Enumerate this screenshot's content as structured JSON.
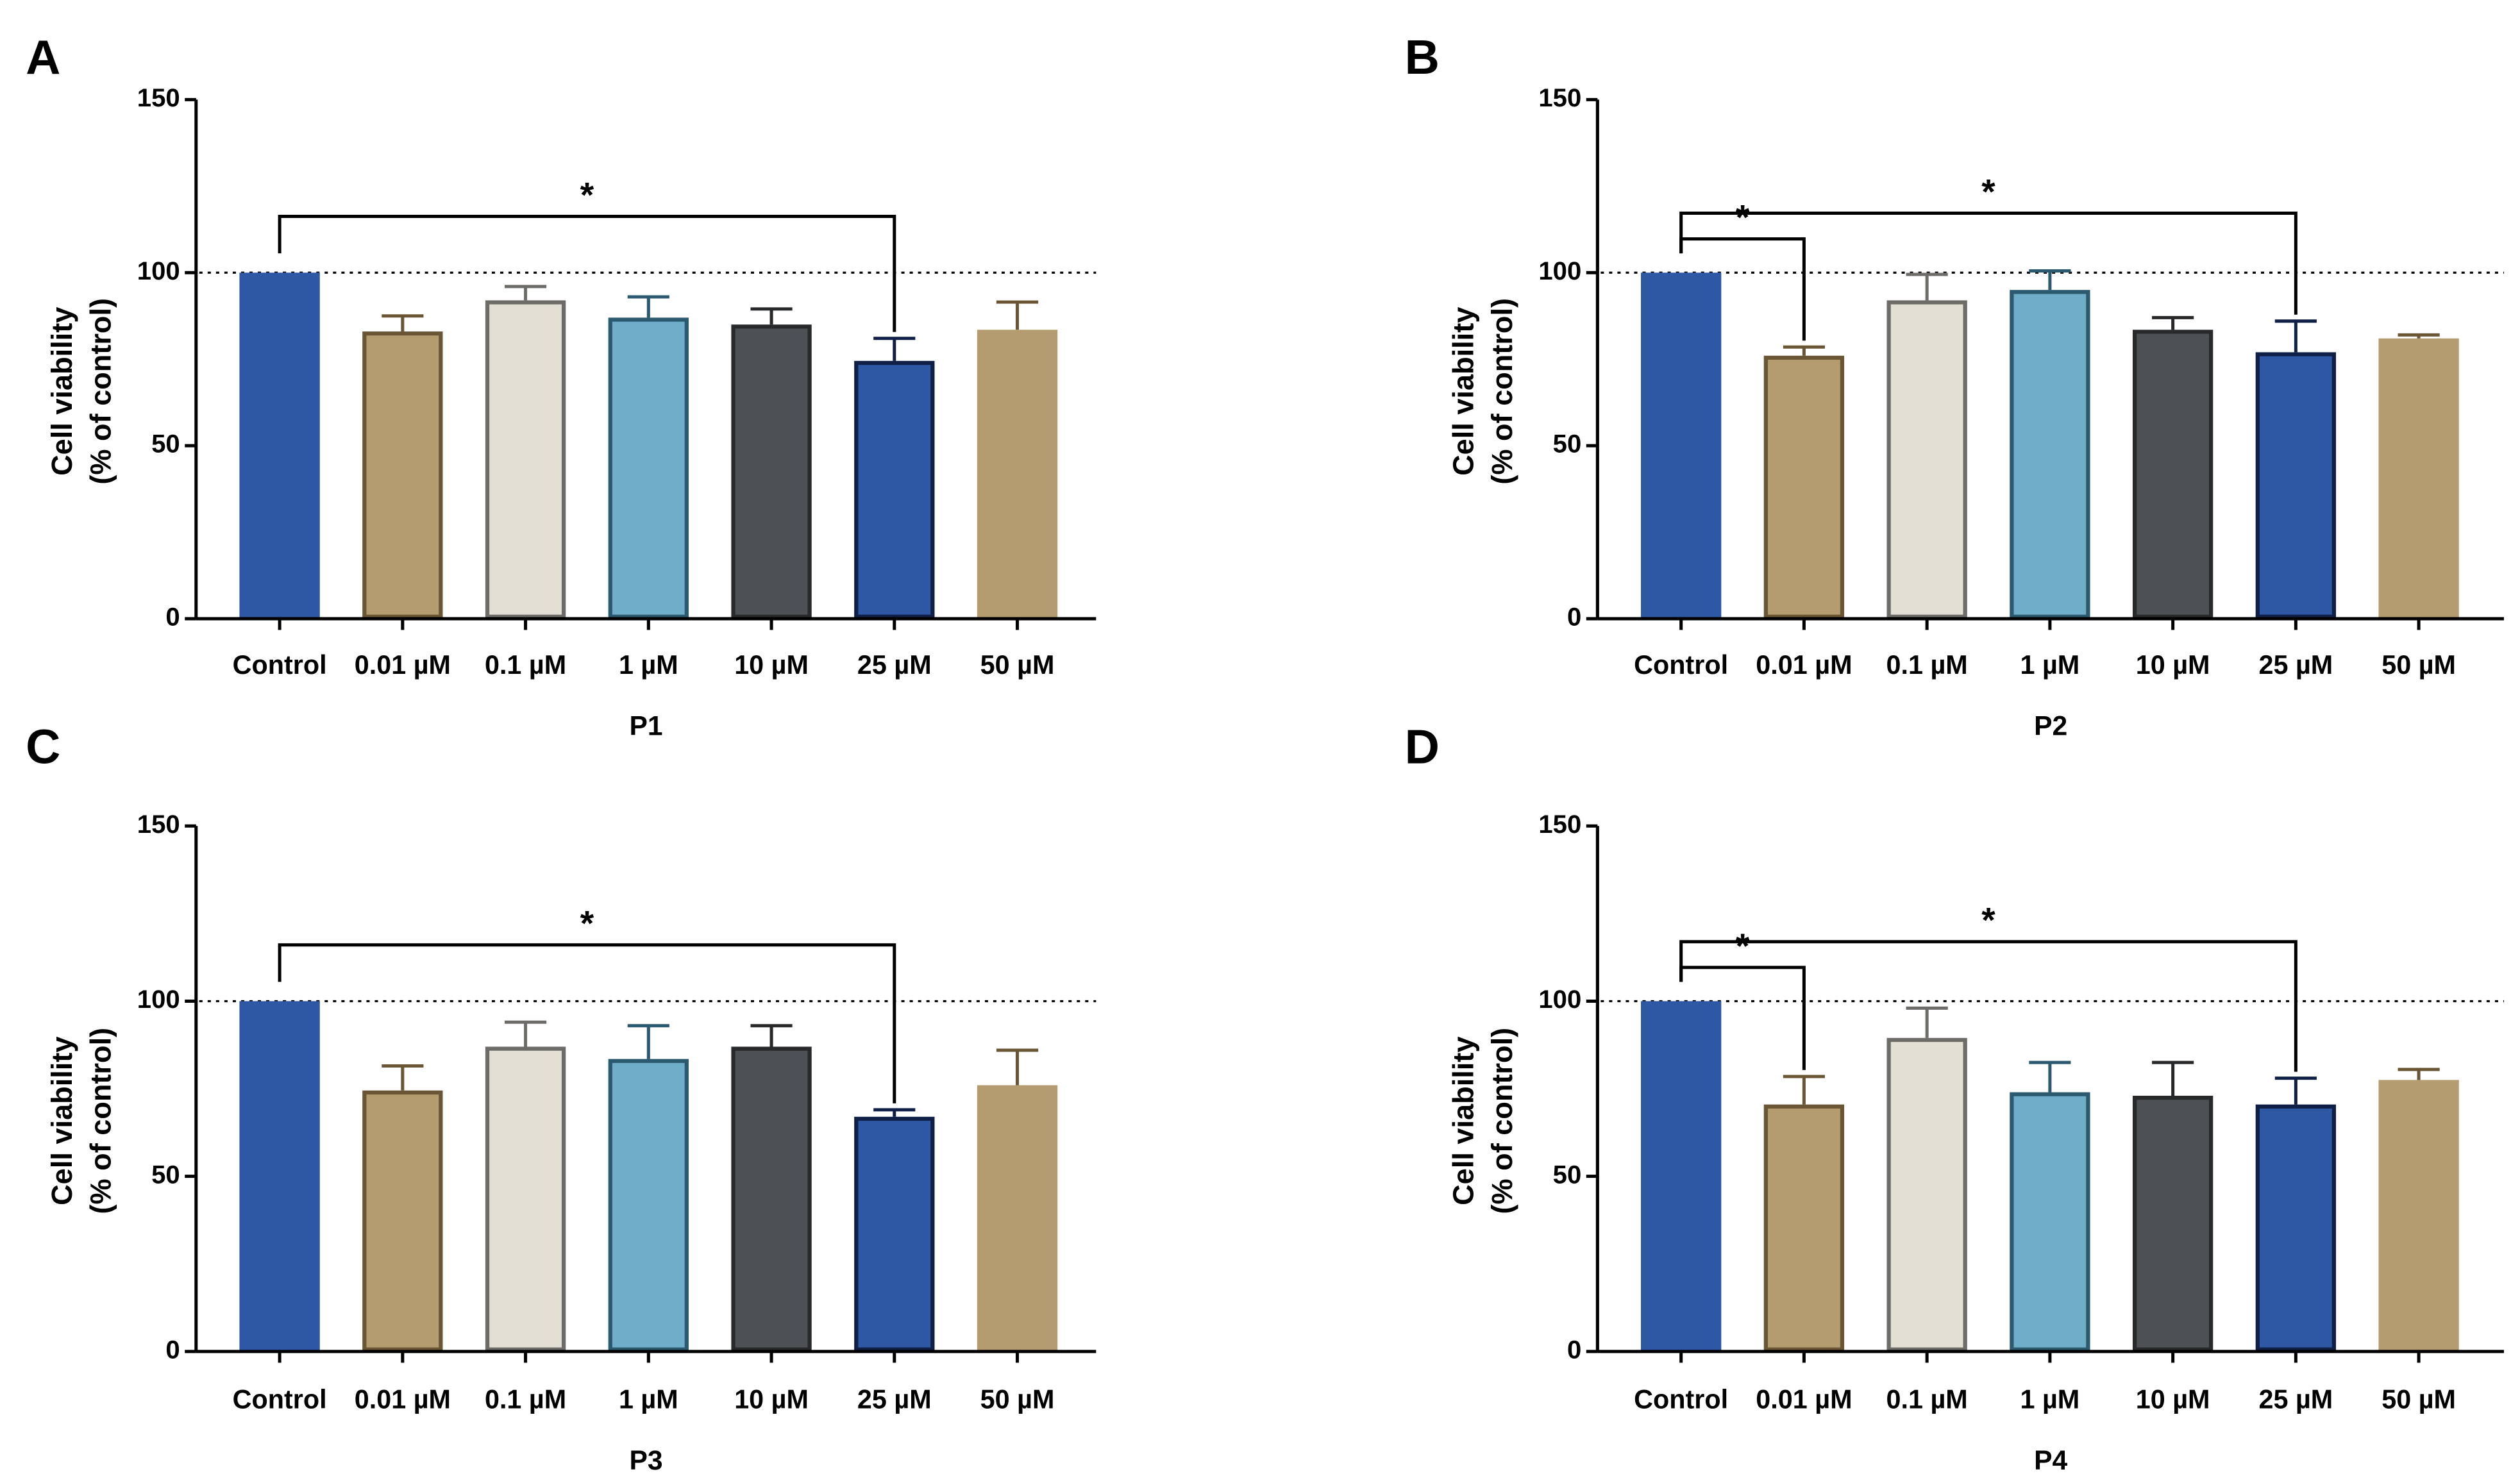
{
  "figure": {
    "panels": [
      "A",
      "B",
      "C",
      "D"
    ]
  },
  "style": {
    "bar_fills": [
      "#2e57a4",
      "#b49c70",
      "#e3dfd4",
      "#6fadc8",
      "#4d5054",
      "#2e57a4",
      "#b49c70"
    ],
    "bar_strokes": [
      "#2e57a4",
      "#6a5634",
      "#6e6c68",
      "#2b5a70",
      "#28292b",
      "#0f1f45",
      "#b49c70"
    ],
    "axis_color": "#000000",
    "reference_line_color": "#000000"
  },
  "chart_data": [
    {
      "panel": "A",
      "type": "bar",
      "title": "",
      "xlabel": "P1",
      "ylabel": [
        "Cell viability",
        "(% of control)"
      ],
      "ylim": [
        0,
        150
      ],
      "yticks": [
        "0",
        "50",
        "100",
        "150"
      ],
      "reference_line": 100,
      "categories": [
        "Control",
        "0.01 µM",
        "0.1 µM",
        "1 µM",
        "10 µM",
        "25 µM",
        "50 µM"
      ],
      "values": [
        100,
        83,
        92,
        87,
        85,
        74.5,
        83.5
      ],
      "errors": [
        0,
        4.5,
        4,
        6,
        4.5,
        6.5,
        8
      ],
      "significance": [
        {
          "from": 0,
          "to": 5,
          "label": "*",
          "level": 1
        }
      ]
    },
    {
      "panel": "B",
      "type": "bar",
      "title": "",
      "xlabel": "P2",
      "ylabel": [
        "Cell viability",
        "(% of control)"
      ],
      "ylim": [
        0,
        150
      ],
      "yticks": [
        "0",
        "50",
        "100",
        "150"
      ],
      "reference_line": 100,
      "categories": [
        "Control",
        "0.01 µM",
        "0.1 µM",
        "1 µM",
        "10 µM",
        "25 µM",
        "50 µM"
      ],
      "values": [
        100,
        76,
        92,
        95,
        83.5,
        77,
        81
      ],
      "errors": [
        0,
        2.5,
        7.5,
        5.5,
        3.5,
        9,
        1
      ],
      "significance": [
        {
          "from": 0,
          "to": 1,
          "label": "*",
          "level": 1
        },
        {
          "from": 0,
          "to": 5,
          "label": "*",
          "level": 2
        }
      ]
    },
    {
      "panel": "C",
      "type": "bar",
      "title": "",
      "xlabel": "P3",
      "ylabel": [
        "Cell viability",
        "(% of control)"
      ],
      "ylim": [
        0,
        150
      ],
      "yticks": [
        "0",
        "50",
        "100",
        "150"
      ],
      "reference_line": 100,
      "categories": [
        "Control",
        "0.01 µM",
        "0.1 µM",
        "1 µM",
        "10 µM",
        "25 µM",
        "50 µM"
      ],
      "values": [
        100,
        74.5,
        87,
        83.5,
        87,
        67,
        76
      ],
      "errors": [
        0,
        7,
        7,
        9.5,
        6,
        2,
        10
      ],
      "significance": [
        {
          "from": 0,
          "to": 5,
          "label": "*",
          "level": 1
        }
      ]
    },
    {
      "panel": "D",
      "type": "bar",
      "title": "",
      "xlabel": "P4",
      "ylabel": [
        "Cell viability",
        "(% of control)"
      ],
      "ylim": [
        0,
        150
      ],
      "yticks": [
        "0",
        "50",
        "100",
        "150"
      ],
      "reference_line": 100,
      "categories": [
        "Control",
        "0.01 µM",
        "0.1 µM",
        "1 µM",
        "10 µM",
        "25 µM",
        "50 µM"
      ],
      "values": [
        100,
        70.5,
        89.5,
        74,
        73,
        70.5,
        77.5
      ],
      "errors": [
        0,
        8,
        8.5,
        8.5,
        9.5,
        7.5,
        3
      ],
      "significance": [
        {
          "from": 0,
          "to": 1,
          "label": "*",
          "level": 1
        },
        {
          "from": 0,
          "to": 5,
          "label": "*",
          "level": 2
        }
      ]
    }
  ]
}
